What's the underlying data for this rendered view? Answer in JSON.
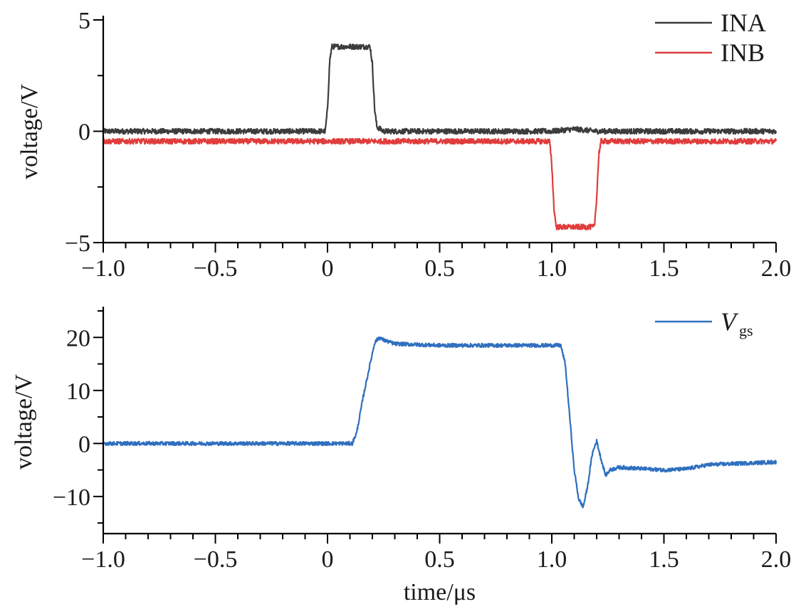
{
  "chart_data": [
    {
      "type": "line",
      "xlabel": "",
      "ylabel": "voltage/V",
      "xlim": [
        -1.0,
        2.0
      ],
      "ylim": [
        -5,
        5
      ],
      "x_ticks": [
        -1.0,
        -0.5,
        0,
        0.5,
        1.0,
        1.5,
        2.0
      ],
      "x_tick_labels": [
        "−1.0",
        "−0.5",
        "0",
        "0.5",
        "1.0",
        "1.5",
        "2.0"
      ],
      "y_ticks": [
        -5,
        0,
        5
      ],
      "y_tick_labels": [
        "−5",
        "0",
        "5"
      ],
      "legend_position": "top-right",
      "series": [
        {
          "name": "INA",
          "color": "#3c3c3c",
          "x": [
            -1.0,
            -0.01,
            0.0,
            0.01,
            0.02,
            0.05,
            0.1,
            0.15,
            0.19,
            0.2,
            0.21,
            0.22,
            0.25,
            0.5,
            1.0,
            1.05,
            1.1,
            1.2,
            1.5,
            2.0
          ],
          "y": [
            0.0,
            0.0,
            1.0,
            3.2,
            3.8,
            3.8,
            3.8,
            3.8,
            3.8,
            3.0,
            1.0,
            0.2,
            0.0,
            0.0,
            0.0,
            0.05,
            0.1,
            0.0,
            0.0,
            0.0
          ]
        },
        {
          "name": "INB",
          "color": "#e03c3c",
          "x": [
            -1.0,
            0.0,
            0.5,
            0.99,
            1.0,
            1.01,
            1.02,
            1.05,
            1.1,
            1.15,
            1.19,
            1.2,
            1.21,
            1.22,
            1.5,
            2.0
          ],
          "y": [
            -0.45,
            -0.45,
            -0.45,
            -0.45,
            -1.5,
            -3.5,
            -4.3,
            -4.3,
            -4.3,
            -4.3,
            -4.3,
            -3.0,
            -1.0,
            -0.45,
            -0.45,
            -0.45
          ]
        }
      ]
    },
    {
      "type": "line",
      "xlabel": "time/μs",
      "ylabel": "voltage/V",
      "xlim": [
        -1.0,
        2.0
      ],
      "ylim": [
        -17,
        25
      ],
      "x_ticks": [
        -1.0,
        -0.5,
        0,
        0.5,
        1.0,
        1.5,
        2.0
      ],
      "x_tick_labels": [
        "−1.0",
        "−0.5",
        "0",
        "0.5",
        "1.0",
        "1.5",
        "2.0"
      ],
      "y_ticks": [
        -10,
        0,
        10,
        20
      ],
      "y_tick_labels": [
        "−10",
        "0",
        "10",
        "20"
      ],
      "legend_position": "top-right",
      "series": [
        {
          "name": "Vgs",
          "name_main": "V",
          "name_sub": "gs",
          "color": "#2f6fbf",
          "x": [
            -1.0,
            0.0,
            0.11,
            0.13,
            0.16,
            0.19,
            0.21,
            0.23,
            0.25,
            0.3,
            0.5,
            0.8,
            1.0,
            1.04,
            1.06,
            1.08,
            1.1,
            1.12,
            1.14,
            1.16,
            1.18,
            1.2,
            1.22,
            1.24,
            1.26,
            1.3,
            1.5,
            1.6,
            1.7,
            2.0
          ],
          "y": [
            0.0,
            0.0,
            0.0,
            2.0,
            9.0,
            15.0,
            19.0,
            20.0,
            19.5,
            18.8,
            18.5,
            18.5,
            18.5,
            18.5,
            15.0,
            5.0,
            -5.0,
            -10.5,
            -12.0,
            -8.0,
            -2.0,
            0.5,
            -3.0,
            -6.0,
            -5.0,
            -4.5,
            -5.0,
            -4.8,
            -4.0,
            -3.5
          ]
        }
      ]
    }
  ]
}
